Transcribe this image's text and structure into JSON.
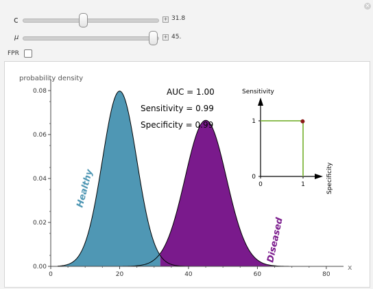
{
  "controls": {
    "c": {
      "label": "c",
      "value": "31.8",
      "fraction": 0.448
    },
    "mu": {
      "label": "μ",
      "value": "45.",
      "fraction": 1.0
    },
    "fpr": {
      "label": "FPR",
      "checked": false
    }
  },
  "close_icon": "close-icon",
  "plot": {
    "ylabel": "probability density",
    "xlabel": "x",
    "auc_text": "AUC = 1.00",
    "sensitivity_text": "Sensitivity = 0.99",
    "specificity_text": "Specificity = 0.99",
    "healthy_label": "Healthy",
    "diseased_label": "Diseased",
    "colors": {
      "healthy": "#4f97b4",
      "diseased": "#7a1a8c",
      "roc_line": "#8fbf55",
      "roc_point": "#8b1a1a"
    }
  },
  "chart_data": [
    {
      "type": "area",
      "title": "",
      "xlabel": "x",
      "ylabel": "probability density",
      "xlim": [
        0,
        85
      ],
      "ylim": [
        0,
        0.085
      ],
      "x_ticks": [
        "0",
        "20",
        "40",
        "60",
        "80"
      ],
      "y_ticks": [
        "0.00",
        "0.02",
        "0.04",
        "0.06",
        "0.08"
      ],
      "cutoff": 31.8,
      "series": [
        {
          "name": "Healthy",
          "mean": 20,
          "sd": 5,
          "fill": "left of cutoff"
        },
        {
          "name": "Diseased",
          "mean": 45,
          "sd": 6,
          "fill": "right of cutoff"
        }
      ]
    },
    {
      "type": "line",
      "xlabel": "Specificity",
      "ylabel": "Sensitivity",
      "xlim": [
        0,
        1
      ],
      "ylim": [
        0,
        1
      ],
      "x_ticks": [
        "0",
        "1"
      ],
      "y_ticks": [
        "0",
        "1"
      ],
      "x": [
        0,
        1,
        1
      ],
      "y": [
        1,
        1,
        0
      ],
      "point": {
        "x": 0.99,
        "y": 0.99
      }
    }
  ]
}
